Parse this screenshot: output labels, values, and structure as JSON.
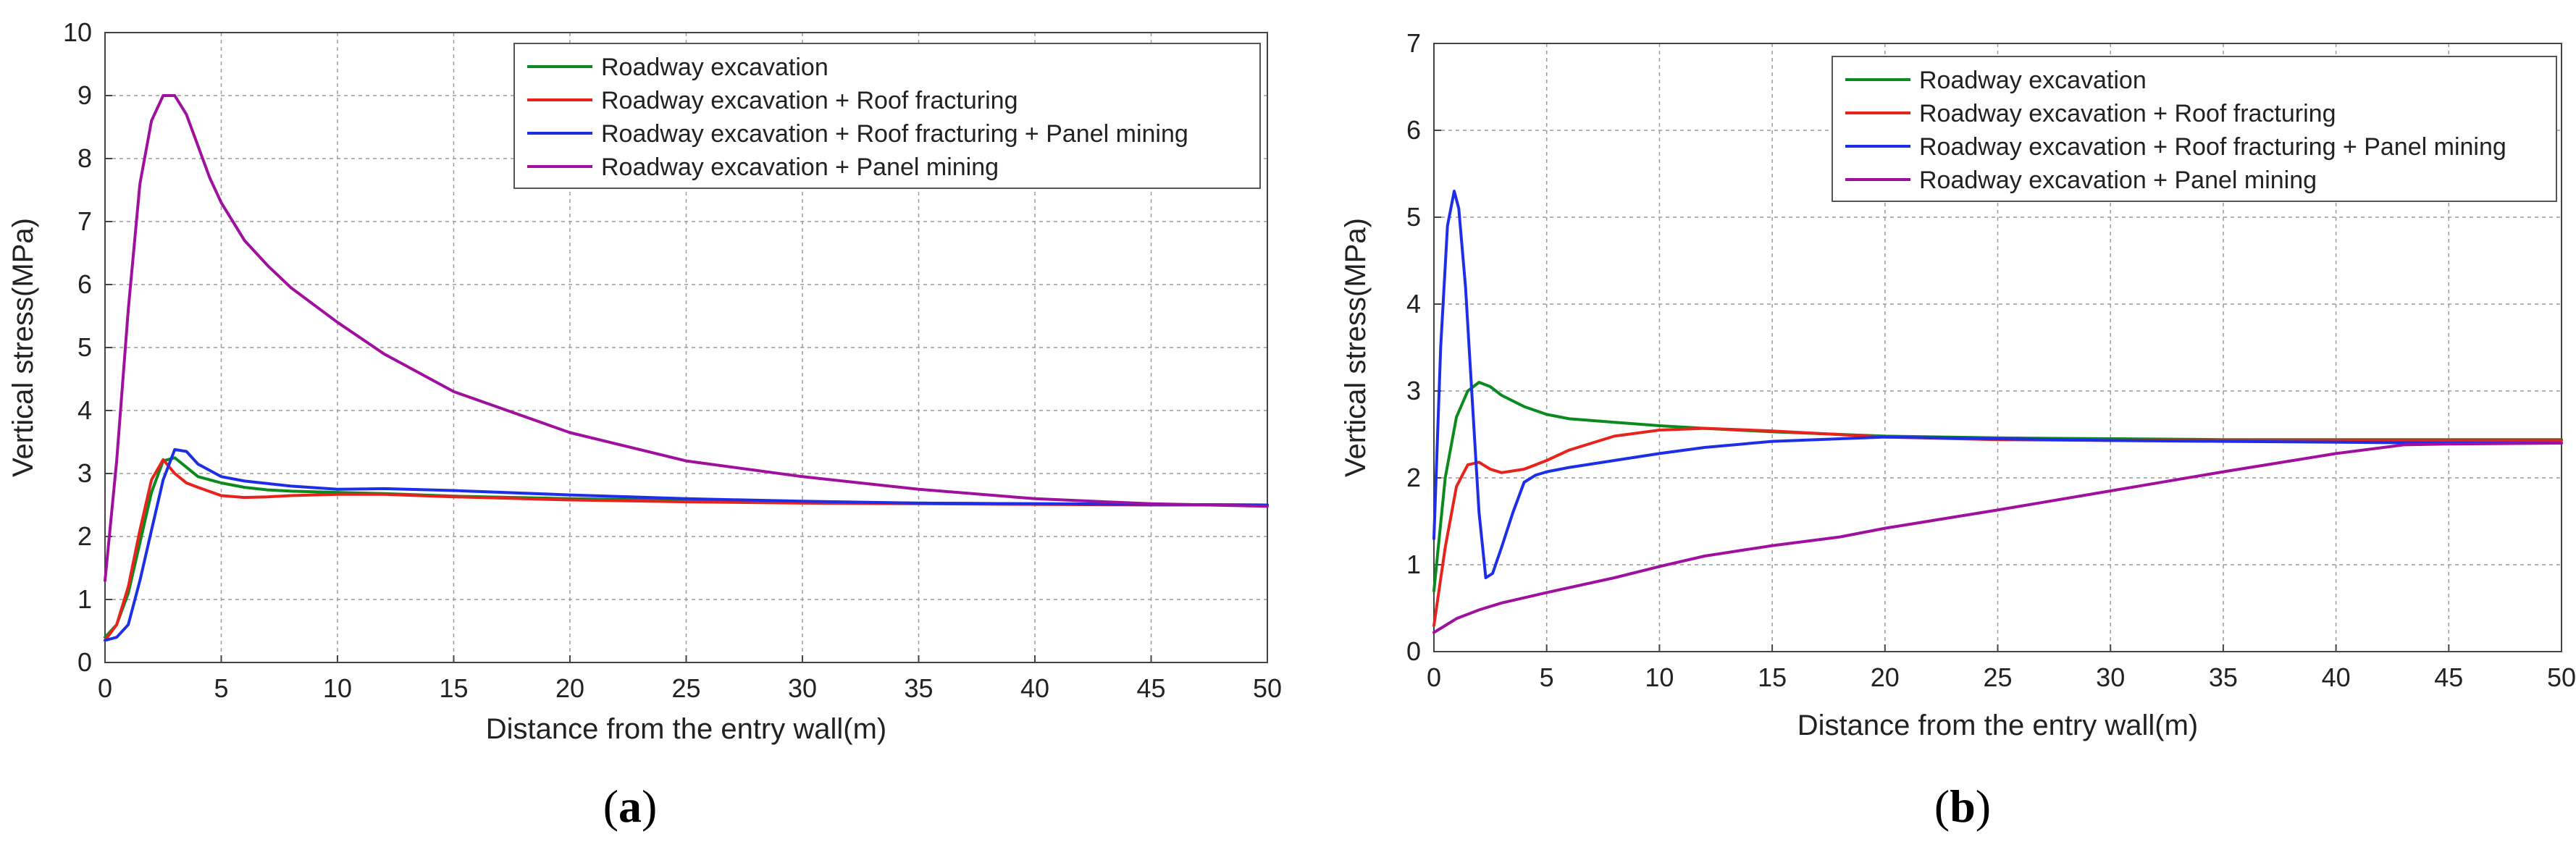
{
  "chart_data": [
    {
      "id": "a",
      "type": "line",
      "caption_letter": "a",
      "xlabel": "Distance from the entry wall(m)",
      "ylabel": "Vertical stress(MPa)",
      "xlim": [
        0,
        50
      ],
      "ylim": [
        0,
        10
      ],
      "xticks": [
        0,
        5,
        10,
        15,
        20,
        25,
        30,
        35,
        40,
        45,
        50
      ],
      "yticks": [
        0,
        1,
        2,
        3,
        4,
        5,
        6,
        7,
        8,
        9,
        10
      ],
      "grid": true,
      "legend_position": "top-right",
      "series": [
        {
          "name": "Roadway excavation",
          "color": "#0a8a1f",
          "x": [
            0,
            0.5,
            1,
            1.5,
            2,
            2.5,
            3,
            3.5,
            4,
            5,
            6,
            7,
            8,
            10,
            12,
            15,
            20,
            25,
            30,
            35,
            40,
            45,
            50
          ],
          "y": [
            0.4,
            0.6,
            1.1,
            1.9,
            2.7,
            3.2,
            3.25,
            3.1,
            2.95,
            2.85,
            2.78,
            2.74,
            2.72,
            2.7,
            2.68,
            2.64,
            2.6,
            2.57,
            2.55,
            2.53,
            2.52,
            2.51,
            2.5
          ]
        },
        {
          "name": "Roadway excavation + Roof fracturing",
          "color": "#e8231c",
          "x": [
            0,
            0.5,
            1,
            1.5,
            2,
            2.5,
            3,
            3.5,
            4,
            5,
            6,
            7,
            8,
            10,
            12,
            15,
            20,
            25,
            30,
            35,
            40,
            45,
            50
          ],
          "y": [
            0.35,
            0.6,
            1.2,
            2.1,
            2.9,
            3.22,
            3.0,
            2.85,
            2.78,
            2.65,
            2.62,
            2.63,
            2.65,
            2.67,
            2.67,
            2.63,
            2.58,
            2.55,
            2.53,
            2.52,
            2.51,
            2.5,
            2.5
          ]
        },
        {
          "name": "Roadway excavation + Roof fracturing + Panel mining",
          "color": "#1d2ee8",
          "x": [
            0,
            0.5,
            1,
            1.5,
            2,
            2.5,
            3,
            3.5,
            4,
            5,
            6,
            7,
            8,
            10,
            12,
            15,
            20,
            25,
            30,
            35,
            40,
            45,
            50
          ],
          "y": [
            0.35,
            0.4,
            0.6,
            1.3,
            2.1,
            2.9,
            3.38,
            3.35,
            3.15,
            2.95,
            2.88,
            2.84,
            2.8,
            2.75,
            2.76,
            2.73,
            2.66,
            2.6,
            2.56,
            2.53,
            2.52,
            2.51,
            2.5
          ]
        },
        {
          "name": "Roadway excavation + Panel mining",
          "color": "#a0109e",
          "x": [
            0,
            0.5,
            1,
            1.5,
            2,
            2.5,
            3,
            3.5,
            4,
            4.5,
            5,
            6,
            7,
            8,
            10,
            12,
            15,
            20,
            25,
            30,
            35,
            40,
            45,
            50
          ],
          "y": [
            1.3,
            3.2,
            5.6,
            7.6,
            8.6,
            9.0,
            9.0,
            8.7,
            8.2,
            7.7,
            7.3,
            6.7,
            6.3,
            5.95,
            5.4,
            4.9,
            4.3,
            3.65,
            3.2,
            2.95,
            2.75,
            2.6,
            2.52,
            2.48
          ]
        }
      ]
    },
    {
      "id": "b",
      "type": "line",
      "caption_letter": "b",
      "xlabel": "Distance from the entry wall(m)",
      "ylabel": "Vertical stress(MPa)",
      "xlim": [
        0,
        50
      ],
      "ylim": [
        0,
        7
      ],
      "xticks": [
        0,
        5,
        10,
        15,
        20,
        25,
        30,
        35,
        40,
        45,
        50
      ],
      "yticks": [
        0,
        1,
        2,
        3,
        4,
        5,
        6,
        7
      ],
      "grid": true,
      "legend_position": "top-right",
      "series": [
        {
          "name": "Roadway excavation",
          "color": "#0a8a1f",
          "x": [
            0,
            0.5,
            1,
            1.5,
            2,
            2.5,
            3,
            4,
            5,
            6,
            8,
            10,
            12,
            15,
            20,
            25,
            30,
            35,
            40,
            45,
            50
          ],
          "y": [
            0.7,
            2.0,
            2.7,
            3.0,
            3.1,
            3.05,
            2.95,
            2.82,
            2.73,
            2.68,
            2.64,
            2.6,
            2.57,
            2.53,
            2.48,
            2.46,
            2.45,
            2.44,
            2.44,
            2.44,
            2.44
          ]
        },
        {
          "name": "Roadway excavation + Roof fracturing",
          "color": "#e8231c",
          "x": [
            0,
            0.5,
            1,
            1.5,
            2,
            2.5,
            3,
            4,
            5,
            6,
            8,
            10,
            12,
            15,
            20,
            25,
            30,
            35,
            40,
            45,
            50
          ],
          "y": [
            0.3,
            1.2,
            1.9,
            2.15,
            2.18,
            2.1,
            2.06,
            2.1,
            2.2,
            2.32,
            2.48,
            2.55,
            2.57,
            2.54,
            2.47,
            2.44,
            2.43,
            2.43,
            2.43,
            2.43,
            2.43
          ]
        },
        {
          "name": "Roadway excavation + Roof fracturing + Panel mining",
          "color": "#1d2ee8",
          "x": [
            0,
            0.3,
            0.6,
            0.9,
            1.1,
            1.4,
            1.7,
            2.0,
            2.3,
            2.6,
            3.0,
            3.5,
            4.0,
            4.5,
            5,
            6,
            8,
            10,
            12,
            15,
            20,
            25,
            30,
            35,
            40,
            45,
            50
          ],
          "y": [
            1.3,
            3.5,
            4.9,
            5.3,
            5.1,
            4.2,
            2.9,
            1.6,
            0.85,
            0.9,
            1.2,
            1.6,
            1.95,
            2.03,
            2.07,
            2.12,
            2.2,
            2.28,
            2.35,
            2.42,
            2.47,
            2.45,
            2.43,
            2.42,
            2.41,
            2.4,
            2.4
          ]
        },
        {
          "name": "Roadway excavation + Panel mining",
          "color": "#a0109e",
          "x": [
            0,
            0.5,
            1,
            2,
            3,
            5,
            8,
            10,
            12,
            15,
            18,
            20,
            25,
            30,
            35,
            40,
            43,
            45,
            50
          ],
          "y": [
            0.22,
            0.3,
            0.38,
            0.48,
            0.56,
            0.68,
            0.85,
            0.98,
            1.1,
            1.22,
            1.32,
            1.42,
            1.63,
            1.85,
            2.07,
            2.28,
            2.38,
            2.39,
            2.4
          ]
        }
      ]
    }
  ]
}
